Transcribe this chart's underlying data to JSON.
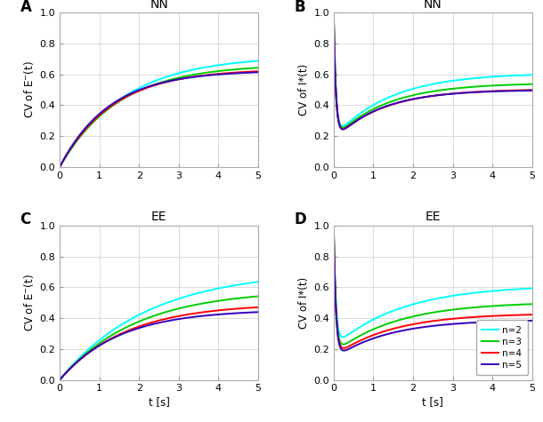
{
  "colors": [
    "cyan",
    "#00cc00",
    "red",
    "#3300bb"
  ],
  "legend_labels": [
    "n=2",
    "n=3",
    "n=4",
    "n=5"
  ],
  "panel_labels": [
    "A",
    "B",
    "C",
    "D"
  ],
  "xlabel": "t [s]",
  "xlim": [
    0,
    5
  ],
  "ylim": [
    0,
    1
  ],
  "xticks": [
    0,
    1,
    2,
    3,
    4,
    5
  ],
  "yticks": [
    0,
    0.2,
    0.4,
    0.6,
    0.8,
    1.0
  ],
  "n_points": 2000,
  "A_asymptotes": [
    0.72,
    0.665,
    0.635,
    0.625
  ],
  "A_rates": [
    0.62,
    0.68,
    0.75,
    0.8
  ],
  "C_asymptotes": [
    0.71,
    0.585,
    0.495,
    0.455
  ],
  "C_rates": [
    0.45,
    0.52,
    0.6,
    0.67
  ],
  "B_asymptotes": [
    0.61,
    0.545,
    0.505,
    0.5
  ],
  "B_tmin": [
    0.35,
    0.35,
    0.35,
    0.35
  ],
  "B_vmin": [
    0.19,
    0.185,
    0.178,
    0.172
  ],
  "B_drop_rate": [
    18.0,
    18.0,
    18.0,
    18.0
  ],
  "B_rise_rate": [
    0.7,
    0.75,
    0.8,
    0.85
  ],
  "D_asymptotes": [
    0.615,
    0.505,
    0.432,
    0.39
  ],
  "D_tmin": [
    0.35,
    0.35,
    0.35,
    0.35
  ],
  "D_vmin": [
    0.215,
    0.172,
    0.152,
    0.138
  ],
  "D_drop_rate": [
    18.0,
    18.0,
    18.0,
    18.0
  ],
  "D_rise_rate": [
    0.58,
    0.63,
    0.68,
    0.73
  ]
}
